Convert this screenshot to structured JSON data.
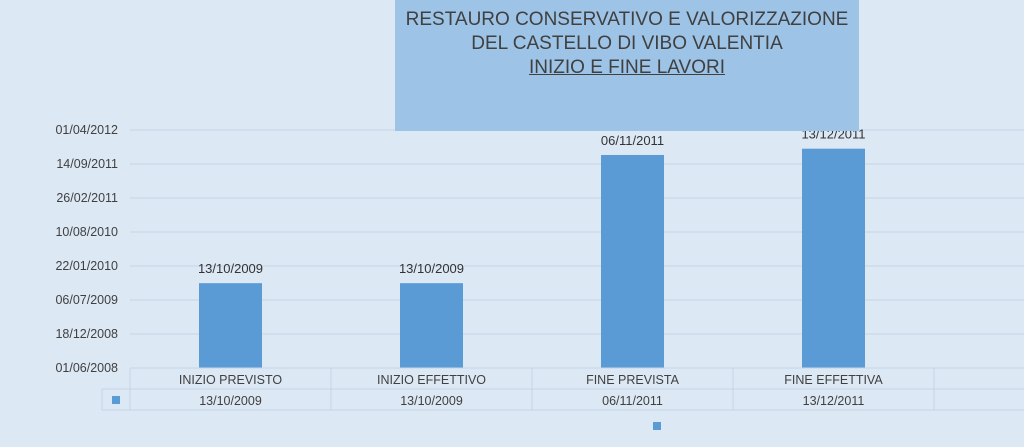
{
  "chart_data": {
    "type": "bar",
    "title_lines": [
      "RESTAURO CONSERVATIVO E VALORIZZAZIONE",
      "DEL CASTELLO DI VIBO VALENTIA",
      "INIZIO E FINE LAVORI"
    ],
    "categories": [
      "INIZIO PREVISTO",
      "INIZIO EFFETTIVO",
      "FINE PREVISTA",
      "FINE EFFETTIVA"
    ],
    "values": [
      "2009-10-13",
      "2009-10-13",
      "2011-11-06",
      "2011-12-13"
    ],
    "data_labels": [
      "13/10/2009",
      "13/10/2009",
      "06/11/2011",
      "13/12/2011"
    ],
    "y_ticks": [
      "01/06/2008",
      "18/12/2008",
      "06/07/2009",
      "22/01/2010",
      "10/08/2010",
      "26/02/2011",
      "14/09/2011",
      "01/04/2012"
    ],
    "ylim": [
      "2008-06-01",
      "2012-04-01"
    ],
    "grid": true,
    "legend": "data-table below chart",
    "bar_color": "#5b9bd5"
  }
}
